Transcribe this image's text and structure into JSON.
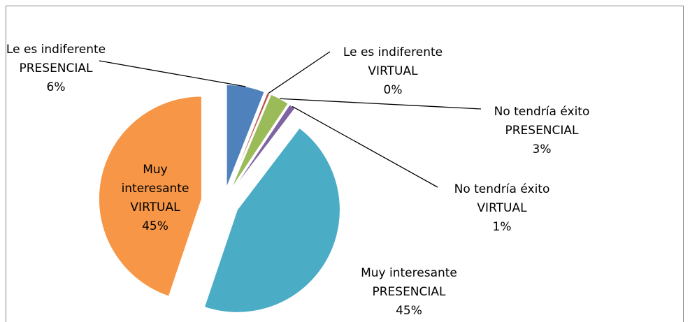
{
  "chart_data": {
    "type": "pie",
    "categories": [
      "Le es indiferente PRESENCIAL",
      "Le es indiferente VIRTUAL",
      "No tendría éxito PRESENCIAL",
      "No tendría éxito VIRTUAL",
      "Muy interesante PRESENCIAL",
      "Muy interesante VIRTUAL"
    ],
    "values": [
      6,
      0.4,
      3,
      1,
      45,
      45
    ],
    "value_labels": [
      "6%",
      "0%",
      "3%",
      "1%",
      "45%",
      "45%"
    ],
    "colors": [
      "#4f81bd",
      "#c0504d",
      "#9bbb59",
      "#8064a2",
      "#4bacc6",
      "#f79646"
    ]
  }
}
